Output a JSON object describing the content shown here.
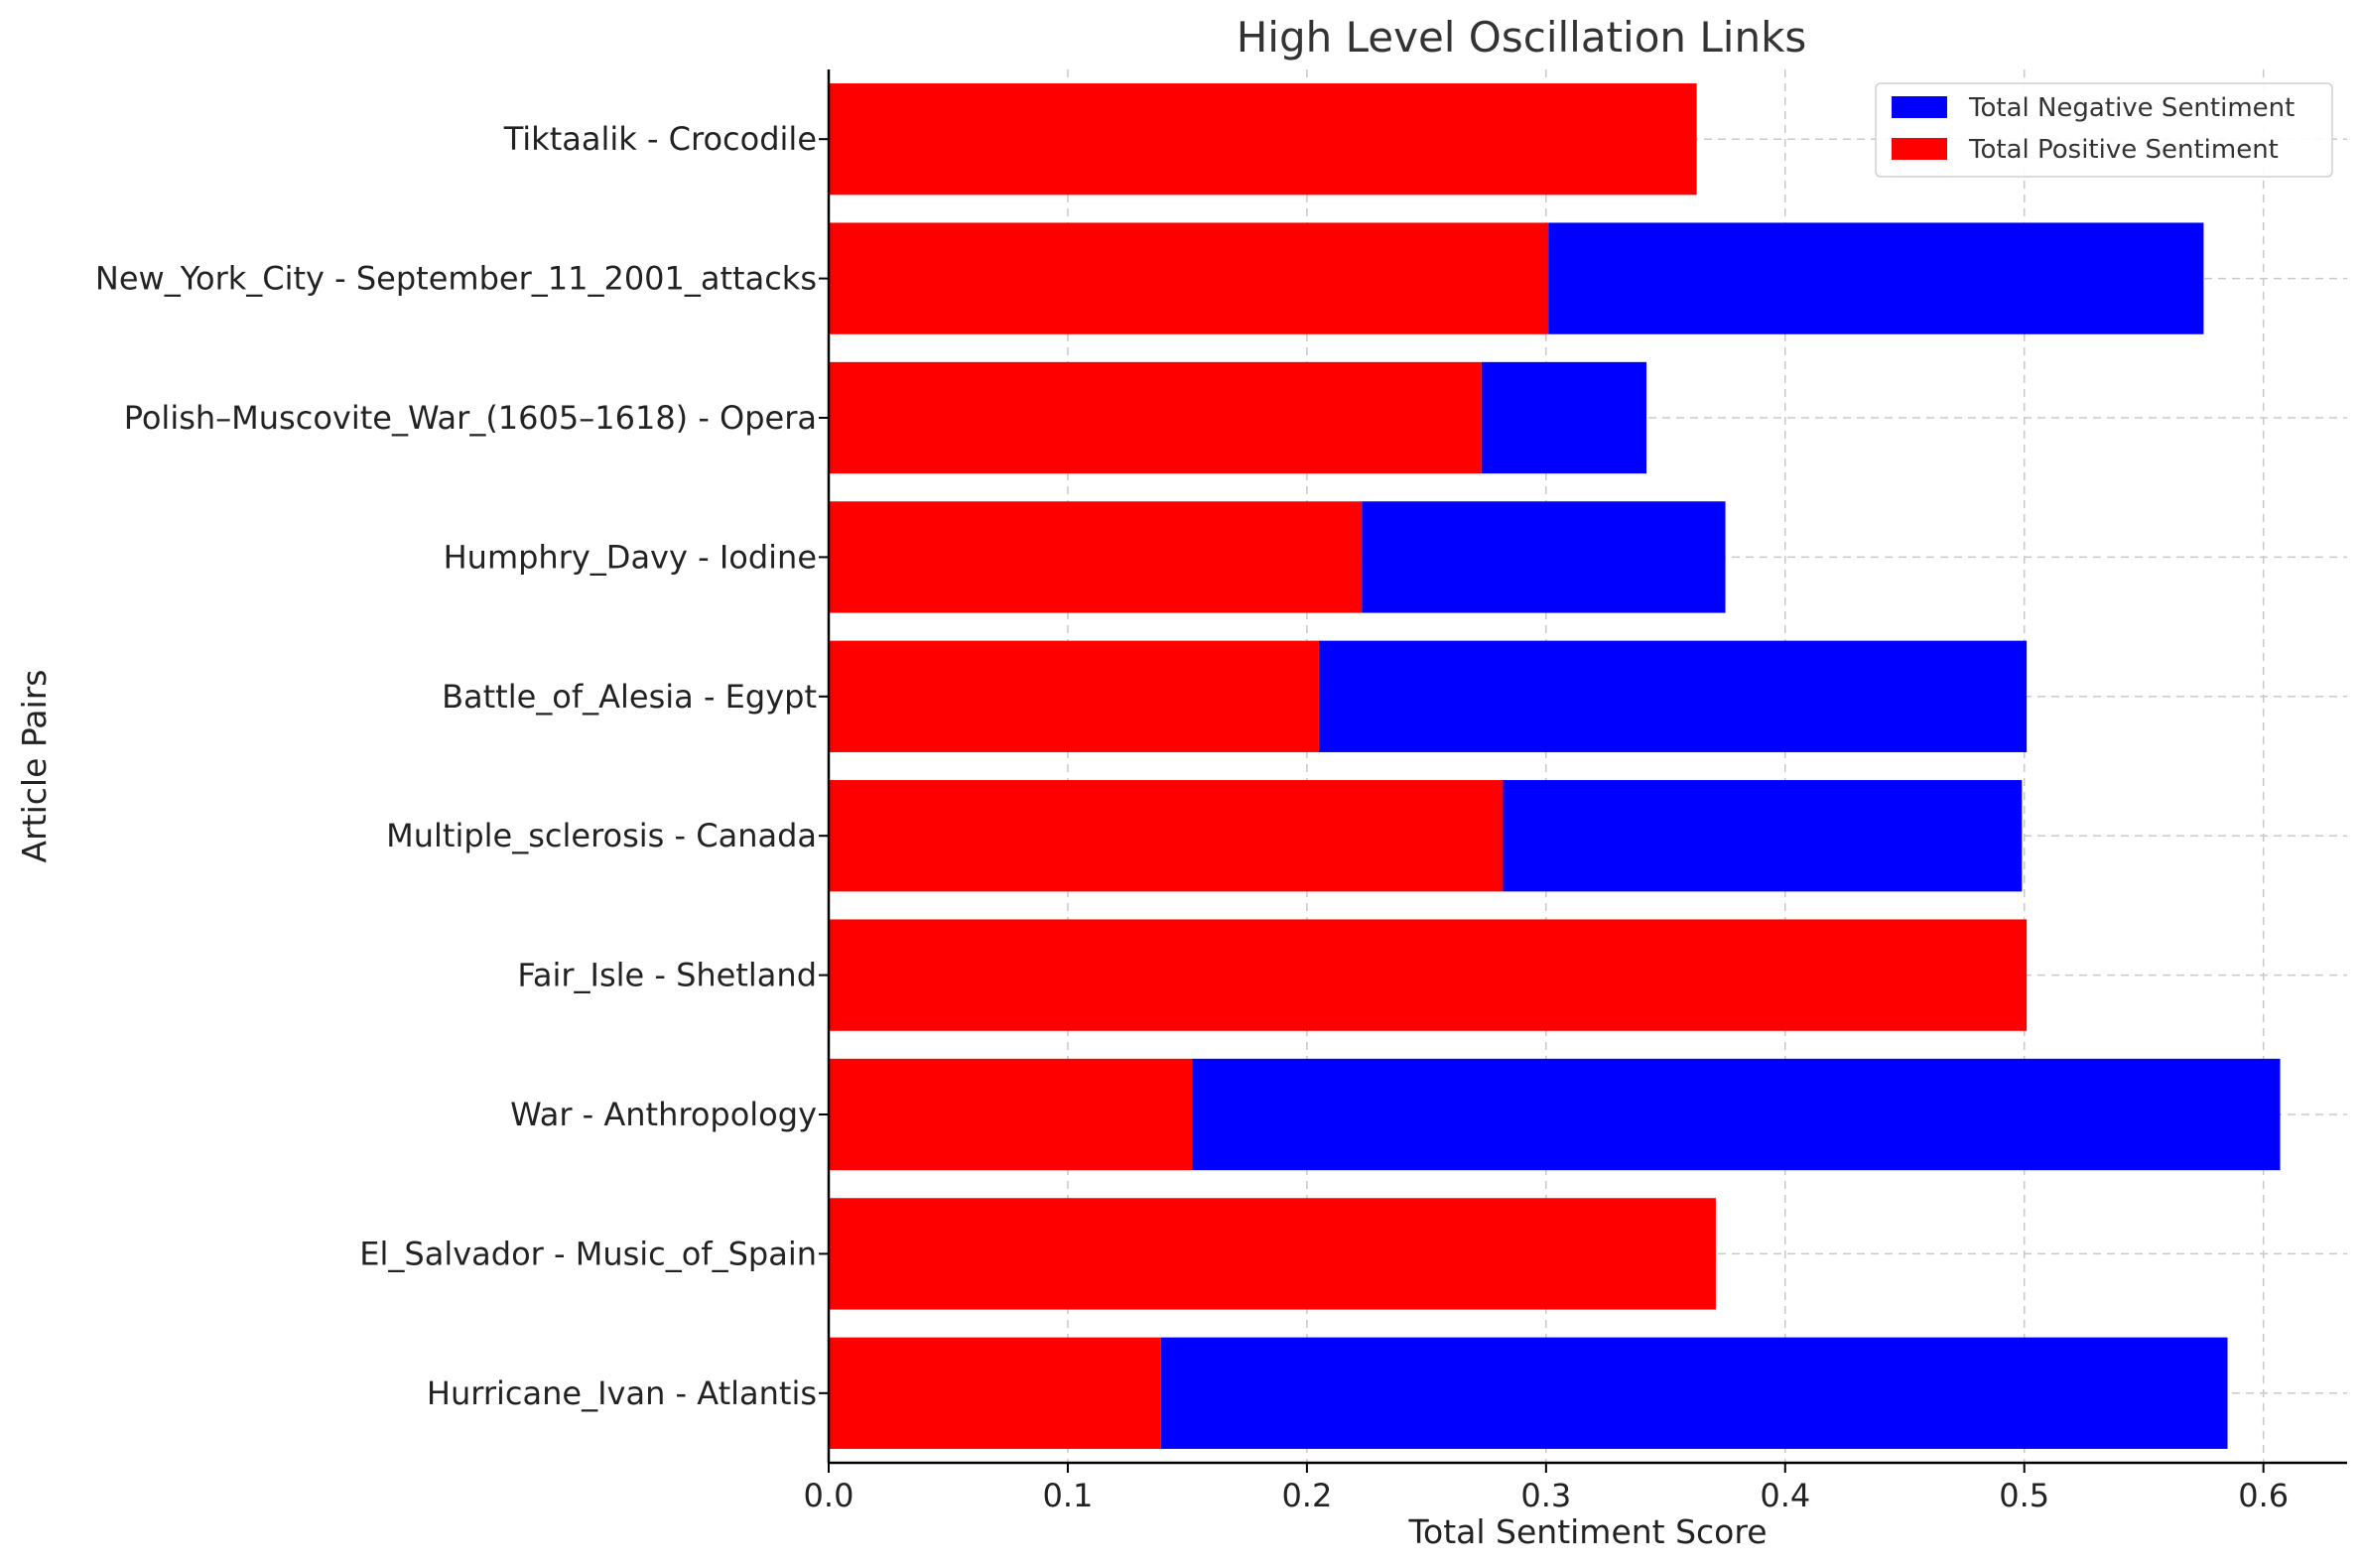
{
  "chart_data": {
    "type": "bar",
    "orientation": "horizontal",
    "stacked": true,
    "title": "High Level Oscillation Links",
    "xlabel": "Total Sentiment Score",
    "ylabel": "Article Pairs",
    "xlim": [
      0.0,
      0.635
    ],
    "xticks": [
      "0.0",
      "0.1",
      "0.2",
      "0.3",
      "0.4",
      "0.5",
      "0.6"
    ],
    "grid": true,
    "legend_position": "top-right",
    "categories": [
      "Tiktaalik - Crocodile",
      "New_York_City - September_11_2001_attacks",
      "Polish–Muscovite_War_(1605–1618) - Opera",
      "Humphry_Davy - Iodine",
      "Battle_of_Alesia - Egypt",
      "Multiple_sclerosis - Canada",
      "Fair_Isle - Shetland",
      "War - Anthropology",
      "El_Salvador - Music_of_Spain",
      "Hurricane_Ivan - Atlantis"
    ],
    "series": [
      {
        "name": "Total Negative Sentiment",
        "color": "#0000ff",
        "values": [
          0.0,
          0.274,
          0.069,
          0.152,
          0.296,
          0.217,
          0.0,
          0.455,
          0.0,
          0.446
        ]
      },
      {
        "name": "Total Positive Sentiment",
        "color": "#ff0000",
        "values": [
          0.363,
          0.301,
          0.273,
          0.223,
          0.205,
          0.282,
          0.501,
          0.152,
          0.371,
          0.139
        ]
      }
    ],
    "stack_order": [
      "Total Positive Sentiment",
      "Total Negative Sentiment"
    ]
  }
}
